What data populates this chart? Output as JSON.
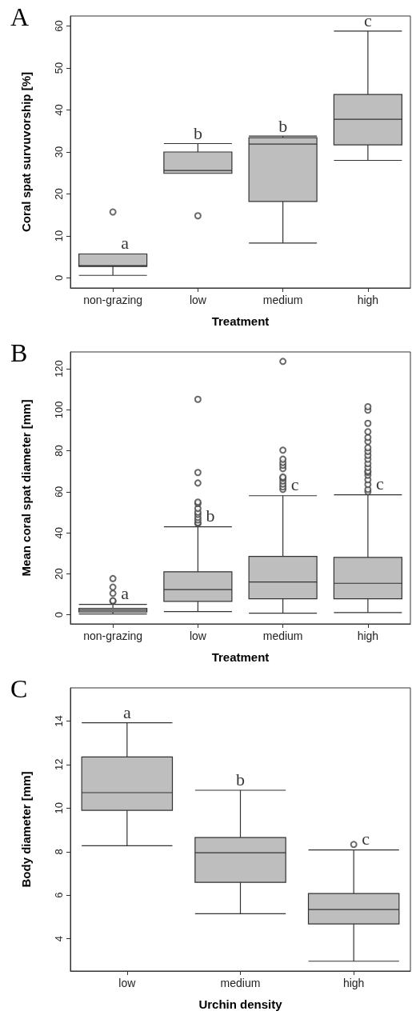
{
  "chart_data": [
    {
      "type": "box",
      "title": "A",
      "xlabel": "Treatment",
      "ylabel": "Coral spat survuvorship [%]",
      "categories": [
        "non-grazing",
        "low",
        "medium",
        "high"
      ],
      "color": "#bebebe",
      "ylim": [
        -2.4,
        62.4
      ],
      "yticks": [
        0,
        10,
        20,
        30,
        40,
        50,
        60
      ],
      "grid": false,
      "boxes": [
        {
          "low": 0.6,
          "q1": 2.7,
          "median": 2.9,
          "q3": 5.7,
          "high": 5.7,
          "outliers": [
            15.7
          ]
        },
        {
          "low": 24.9,
          "q1": 24.9,
          "median": 25.6,
          "q3": 30.0,
          "high": 32.0,
          "outliers": [
            14.8
          ]
        },
        {
          "low": 8.3,
          "q1": 18.2,
          "median": 31.9,
          "q3": 33.4,
          "high": 33.8
        },
        {
          "low": 28.0,
          "q1": 31.7,
          "median": 37.8,
          "q3": 43.7,
          "high": 58.8
        }
      ],
      "annotations": [
        "a",
        "b",
        "b",
        "c"
      ]
    },
    {
      "type": "box",
      "title": "B",
      "xlabel": "Treatment",
      "ylabel": "Mean coral spat diameter [mm]",
      "categories": [
        "non-grazing",
        "low",
        "medium",
        "high"
      ],
      "color": "#bebebe",
      "ylim": [
        -4.4,
        128.2
      ],
      "yticks": [
        0,
        20,
        40,
        60,
        80,
        100,
        120
      ],
      "grid": false,
      "boxes": [
        {
          "low": 0.4,
          "q1": 1.4,
          "median": 2.4,
          "q3": 3.2,
          "high": 5.1,
          "outliers": [
            6.7,
            6.9,
            10.5,
            13.5,
            17.7
          ]
        },
        {
          "low": 1.6,
          "q1": 6.6,
          "median": 12.3,
          "q3": 21.0,
          "high": 42.9,
          "outliers": [
            44.5,
            44.9,
            46.3,
            47.5,
            49.0,
            50.1,
            51.9,
            54.3,
            55.0,
            64.3,
            69.4,
            105.1
          ]
        },
        {
          "low": 0.8,
          "q1": 7.8,
          "median": 16.0,
          "q3": 28.5,
          "high": 58.1,
          "outliers": [
            61.2,
            62.4,
            63.8,
            65.3,
            66.6,
            67.2,
            71.3,
            72.9,
            74.3,
            75.9,
            80.3,
            123.6
          ]
        },
        {
          "low": 1.1,
          "q1": 7.8,
          "median": 15.4,
          "q3": 28.0,
          "high": 58.5,
          "outliers": [
            60.0,
            61.2,
            63.6,
            65.9,
            68.1,
            69.5,
            70.1,
            71.9,
            73.8,
            75.9,
            77.8,
            79.7,
            81.5,
            84.5,
            86.5,
            89.3,
            93.4,
            99.8,
            101.5
          ]
        }
      ],
      "annotations": [
        "a",
        "b",
        "c",
        "c"
      ]
    },
    {
      "type": "box",
      "title": "C",
      "xlabel": "Urchin density",
      "ylabel": "Body diameter [mm]",
      "categories": [
        "low",
        "medium",
        "high"
      ],
      "color": "#bebebe",
      "ylim": [
        2.52,
        15.52
      ],
      "yticks": [
        4,
        6,
        8,
        10,
        12,
        14
      ],
      "grid": false,
      "boxes": [
        {
          "low": 8.27,
          "q1": 9.9,
          "median": 10.71,
          "q3": 12.35,
          "high": 13.92
        },
        {
          "low": 5.15,
          "q1": 6.59,
          "median": 7.95,
          "q3": 8.65,
          "high": 10.82
        },
        {
          "low": 2.97,
          "q1": 4.68,
          "median": 5.34,
          "q3": 6.08,
          "high": 8.08,
          "outliers": [
            8.33
          ]
        }
      ],
      "annotations": [
        "a",
        "b",
        "c"
      ]
    }
  ]
}
